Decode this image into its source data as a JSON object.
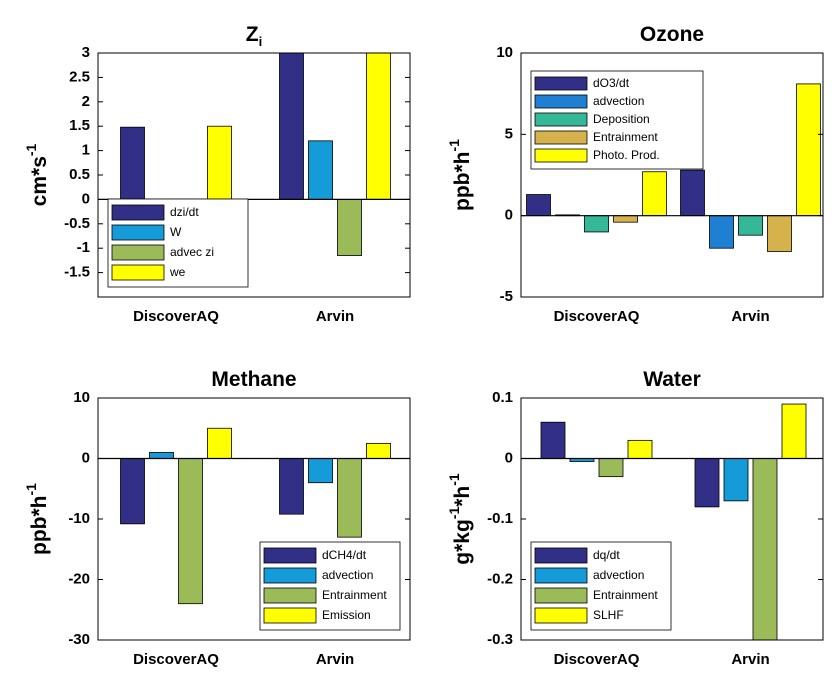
{
  "chart_data": [
    {
      "type": "bar",
      "title": [
        "Z",
        "i"
      ],
      "ylabel": [
        "cm*s",
        "-1"
      ],
      "categories": [
        "DiscoverAQ",
        "Arvin"
      ],
      "series": [
        {
          "name": "dzi/dt",
          "color": "#322f86",
          "values": [
            1.48,
            3
          ]
        },
        {
          "name": "W",
          "color": "#159bd7",
          "values": [
            0,
            1.2
          ]
        },
        {
          "name": "advec zi",
          "color": "#9bbb59",
          "values": [
            -0.05,
            -1.15
          ]
        },
        {
          "name": "we",
          "color": "#ffff00",
          "values": [
            1.5,
            3
          ]
        }
      ],
      "ylim": [
        -2,
        3
      ],
      "yticks": [
        -1.5,
        -1,
        -0.5,
        0,
        0.5,
        1,
        1.5,
        2,
        2.5,
        3
      ],
      "legend": "lower left"
    },
    {
      "type": "bar",
      "title": [
        "Ozone"
      ],
      "ylabel": [
        "ppb*h",
        "-1"
      ],
      "categories": [
        "DiscoverAQ",
        "Arvin"
      ],
      "series": [
        {
          "name": "dO3/dt",
          "color": "#322f86",
          "values": [
            1.3,
            2.8
          ]
        },
        {
          "name": "advection",
          "color": "#1f7fd3",
          "values": [
            0.05,
            -2.0
          ]
        },
        {
          "name": "Deposition",
          "color": "#35b898",
          "values": [
            -1.0,
            -1.2
          ]
        },
        {
          "name": "Entrainment",
          "color": "#d6b24c",
          "values": [
            -0.4,
            -2.2
          ]
        },
        {
          "name": "Photo. Prod.",
          "color": "#ffff00",
          "values": [
            2.7,
            8.1
          ]
        }
      ],
      "ylim": [
        -5,
        10
      ],
      "yticks": [
        -5,
        0,
        5,
        10
      ],
      "legend": "upper left"
    },
    {
      "type": "bar",
      "title": [
        "Methane"
      ],
      "ylabel": [
        "ppb*h",
        "-1"
      ],
      "categories": [
        "DiscoverAQ",
        "Arvin"
      ],
      "series": [
        {
          "name": "dCH4/dt",
          "color": "#322f86",
          "values": [
            -10.8,
            -9.2
          ]
        },
        {
          "name": "advection",
          "color": "#159bd7",
          "values": [
            1,
            -4
          ]
        },
        {
          "name": "Entrainment",
          "color": "#9bbb59",
          "values": [
            -24,
            -13
          ]
        },
        {
          "name": "Emission",
          "color": "#ffff00",
          "values": [
            5,
            2.5
          ]
        }
      ],
      "ylim": [
        -30,
        10
      ],
      "yticks": [
        -30,
        -20,
        -10,
        0,
        10
      ],
      "legend": "lower right"
    },
    {
      "type": "bar",
      "title": [
        "Water"
      ],
      "ylabel": [
        "g*kg",
        "-1",
        "*h",
        "-1"
      ],
      "categories": [
        "DiscoverAQ",
        "Arvin"
      ],
      "series": [
        {
          "name": "dq/dt",
          "color": "#322f86",
          "values": [
            0.06,
            -0.08
          ]
        },
        {
          "name": "advection",
          "color": "#159bd7",
          "values": [
            -0.005,
            -0.07
          ]
        },
        {
          "name": "Entrainment",
          "color": "#9bbb59",
          "values": [
            -0.03,
            -0.3
          ]
        },
        {
          "name": "SLHF",
          "color": "#ffff00",
          "values": [
            0.03,
            0.09
          ]
        }
      ],
      "ylim": [
        -0.3,
        0.1
      ],
      "yticks": [
        -0.3,
        -0.2,
        -0.1,
        0,
        0.1
      ],
      "legend": "lower left"
    }
  ]
}
